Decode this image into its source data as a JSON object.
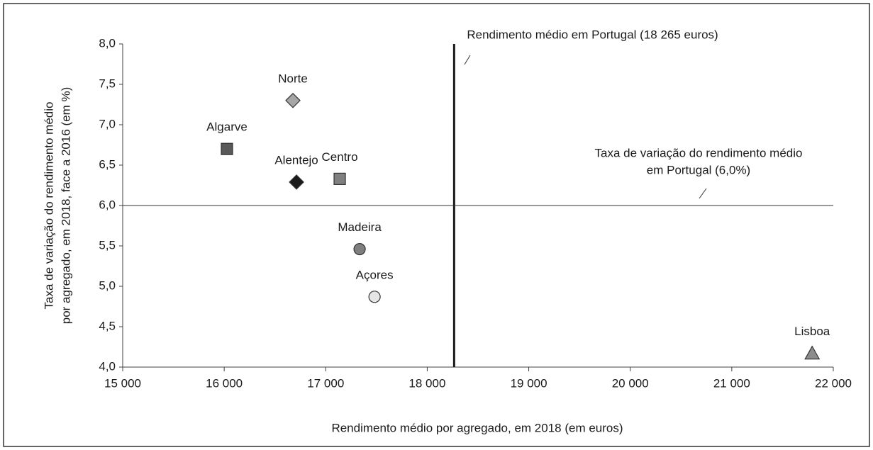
{
  "chart_data": {
    "type": "scatter",
    "x_label": "Rendimento médio por agregado, em 2018 (em euros)",
    "y_label": [
      "Taxa de variação do rendimento médio",
      "por agregado, em 2018, face a 2016 (em %)"
    ],
    "xlim": [
      15000,
      22000
    ],
    "xticks": [
      {
        "value": 15000,
        "label": "15 000"
      },
      {
        "value": 16000,
        "label": "16 000"
      },
      {
        "value": 17000,
        "label": "17 000"
      },
      {
        "value": 18000,
        "label": "18 000"
      },
      {
        "value": 19000,
        "label": "19 000"
      },
      {
        "value": 20000,
        "label": "20 000"
      },
      {
        "value": 21000,
        "label": "21 000"
      },
      {
        "value": 22000,
        "label": "22 000"
      }
    ],
    "ylim": [
      4,
      8
    ],
    "yticks": [
      {
        "value": 4,
        "label": "4,0"
      },
      {
        "value": 4.5,
        "label": "4,5"
      },
      {
        "value": 5,
        "label": "5,0"
      },
      {
        "value": 5.5,
        "label": "5,5"
      },
      {
        "value": 6,
        "label": "6,0"
      },
      {
        "value": 6.5,
        "label": "6,5"
      },
      {
        "value": 7,
        "label": "7,0"
      },
      {
        "value": 7.5,
        "label": "7,5"
      },
      {
        "value": 8,
        "label": "8,0"
      }
    ],
    "grid": false,
    "series": [
      {
        "name": "Norte",
        "color": "#a6a6a6",
        "marker": "diamond",
        "x": [
          16677
        ],
        "values": [
          7.3
        ]
      },
      {
        "name": "Algarve",
        "color": "#595959",
        "marker": "square",
        "x": [
          16027
        ],
        "values": [
          6.7
        ]
      },
      {
        "name": "Alentejo",
        "color": "#1a1a1a",
        "marker": "diamond",
        "x": [
          16712
        ],
        "values": [
          6.29
        ]
      },
      {
        "name": "Centro",
        "color": "#808080",
        "marker": "square",
        "x": [
          17138
        ],
        "values": [
          6.33
        ]
      },
      {
        "name": "Madeira",
        "color": "#7f7f7f",
        "marker": "circle",
        "x": [
          17334
        ],
        "values": [
          5.46
        ]
      },
      {
        "name": "Açores",
        "color": "#e6e6e6",
        "marker": "circle",
        "x": [
          17481
        ],
        "values": [
          4.87
        ]
      },
      {
        "name": "Lisboa",
        "color": "#8c8c8c",
        "marker": "triangle",
        "x": [
          21792
        ],
        "values": [
          4.17
        ]
      }
    ],
    "reference_lines": [
      {
        "axis": "x",
        "value": 18265,
        "label": [
          "Rendimento médio em Portugal (18 265 euros)"
        ]
      },
      {
        "axis": "y",
        "value": 6,
        "label": [
          "Taxa de variação do rendimento médio",
          "em Portugal (6,0%)"
        ]
      }
    ]
  }
}
